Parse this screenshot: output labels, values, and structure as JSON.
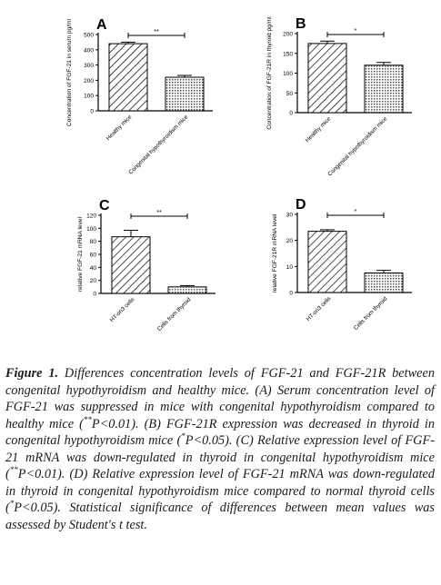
{
  "chart_data": [
    {
      "panel": "A",
      "type": "bar",
      "categories": [
        "Healthy mice",
        "Congenital hypothyroidism mice"
      ],
      "values": [
        440,
        220
      ],
      "errors": [
        10,
        12
      ],
      "ylabel": "Concentration of FGF-21 in serum pg/ml",
      "ylim": [
        0,
        500
      ],
      "yticks": [
        "0",
        "100",
        "200",
        "300",
        "400",
        "500"
      ],
      "significance": "**"
    },
    {
      "panel": "B",
      "type": "bar",
      "categories": [
        "Healthy mice",
        "Congenital hypothyroidism mice"
      ],
      "values": [
        175,
        120
      ],
      "errors": [
        6,
        7
      ],
      "ylabel": "Concentration of FGF-21R in thyroid pg/ml",
      "ylim": [
        0,
        200
      ],
      "yticks": [
        "0",
        "50",
        "100",
        "150",
        "200"
      ],
      "significance": "*"
    },
    {
      "panel": "C",
      "type": "bar",
      "categories": [
        "HT-ori3 cells",
        "Cells from thyroid"
      ],
      "values": [
        87,
        10
      ],
      "errors": [
        10,
        2
      ],
      "ylabel": "relative FGF-21 mRNA level",
      "ylim": [
        0,
        120
      ],
      "yticks": [
        "0",
        "20",
        "40",
        "60",
        "80",
        "100",
        "120"
      ],
      "significance": "**"
    },
    {
      "panel": "D",
      "type": "bar",
      "categories": [
        "HT-ori3 cells",
        "Cells from thyroid"
      ],
      "values": [
        23.5,
        7.5
      ],
      "errors": [
        0.6,
        1.0
      ],
      "ylabel": "relative FGF-21R mRNA level",
      "ylim": [
        0,
        30
      ],
      "yticks": [
        "0",
        "10",
        "20",
        "30"
      ],
      "significance": "*"
    }
  ],
  "caption": {
    "label": "Figure 1.",
    "text_1": " Differences concentration levels of FGF-21 and FGF-21R between congenital hypothyroidism and healthy mice. (A) Serum concentration level of FGF-21 was suppressed in mice with congenital hypothyroidism compared to healthy mice (",
    "sup_1": "**",
    "text_2": "P<0.01). (B) FGF-21R expression was decreased in thyroid in congenital hypothyroidism mice (",
    "sup_2": "*",
    "text_3": "P<0.05). (C) Relative expression level of FGF-21 mRNA was down-regulated in thyroid in congenital hypothyroidism mice (",
    "sup_3": "**",
    "text_4": "P<0.01). (D) Relative expression level of FGF-21 mRNA was down-regulated in thyroid in congenital hypothyroidism mice compared to normal thyroid cells (",
    "sup_4": "*",
    "text_5": "P<0.05). Statistical significance of differences between mean values was assessed by Student's t test."
  }
}
